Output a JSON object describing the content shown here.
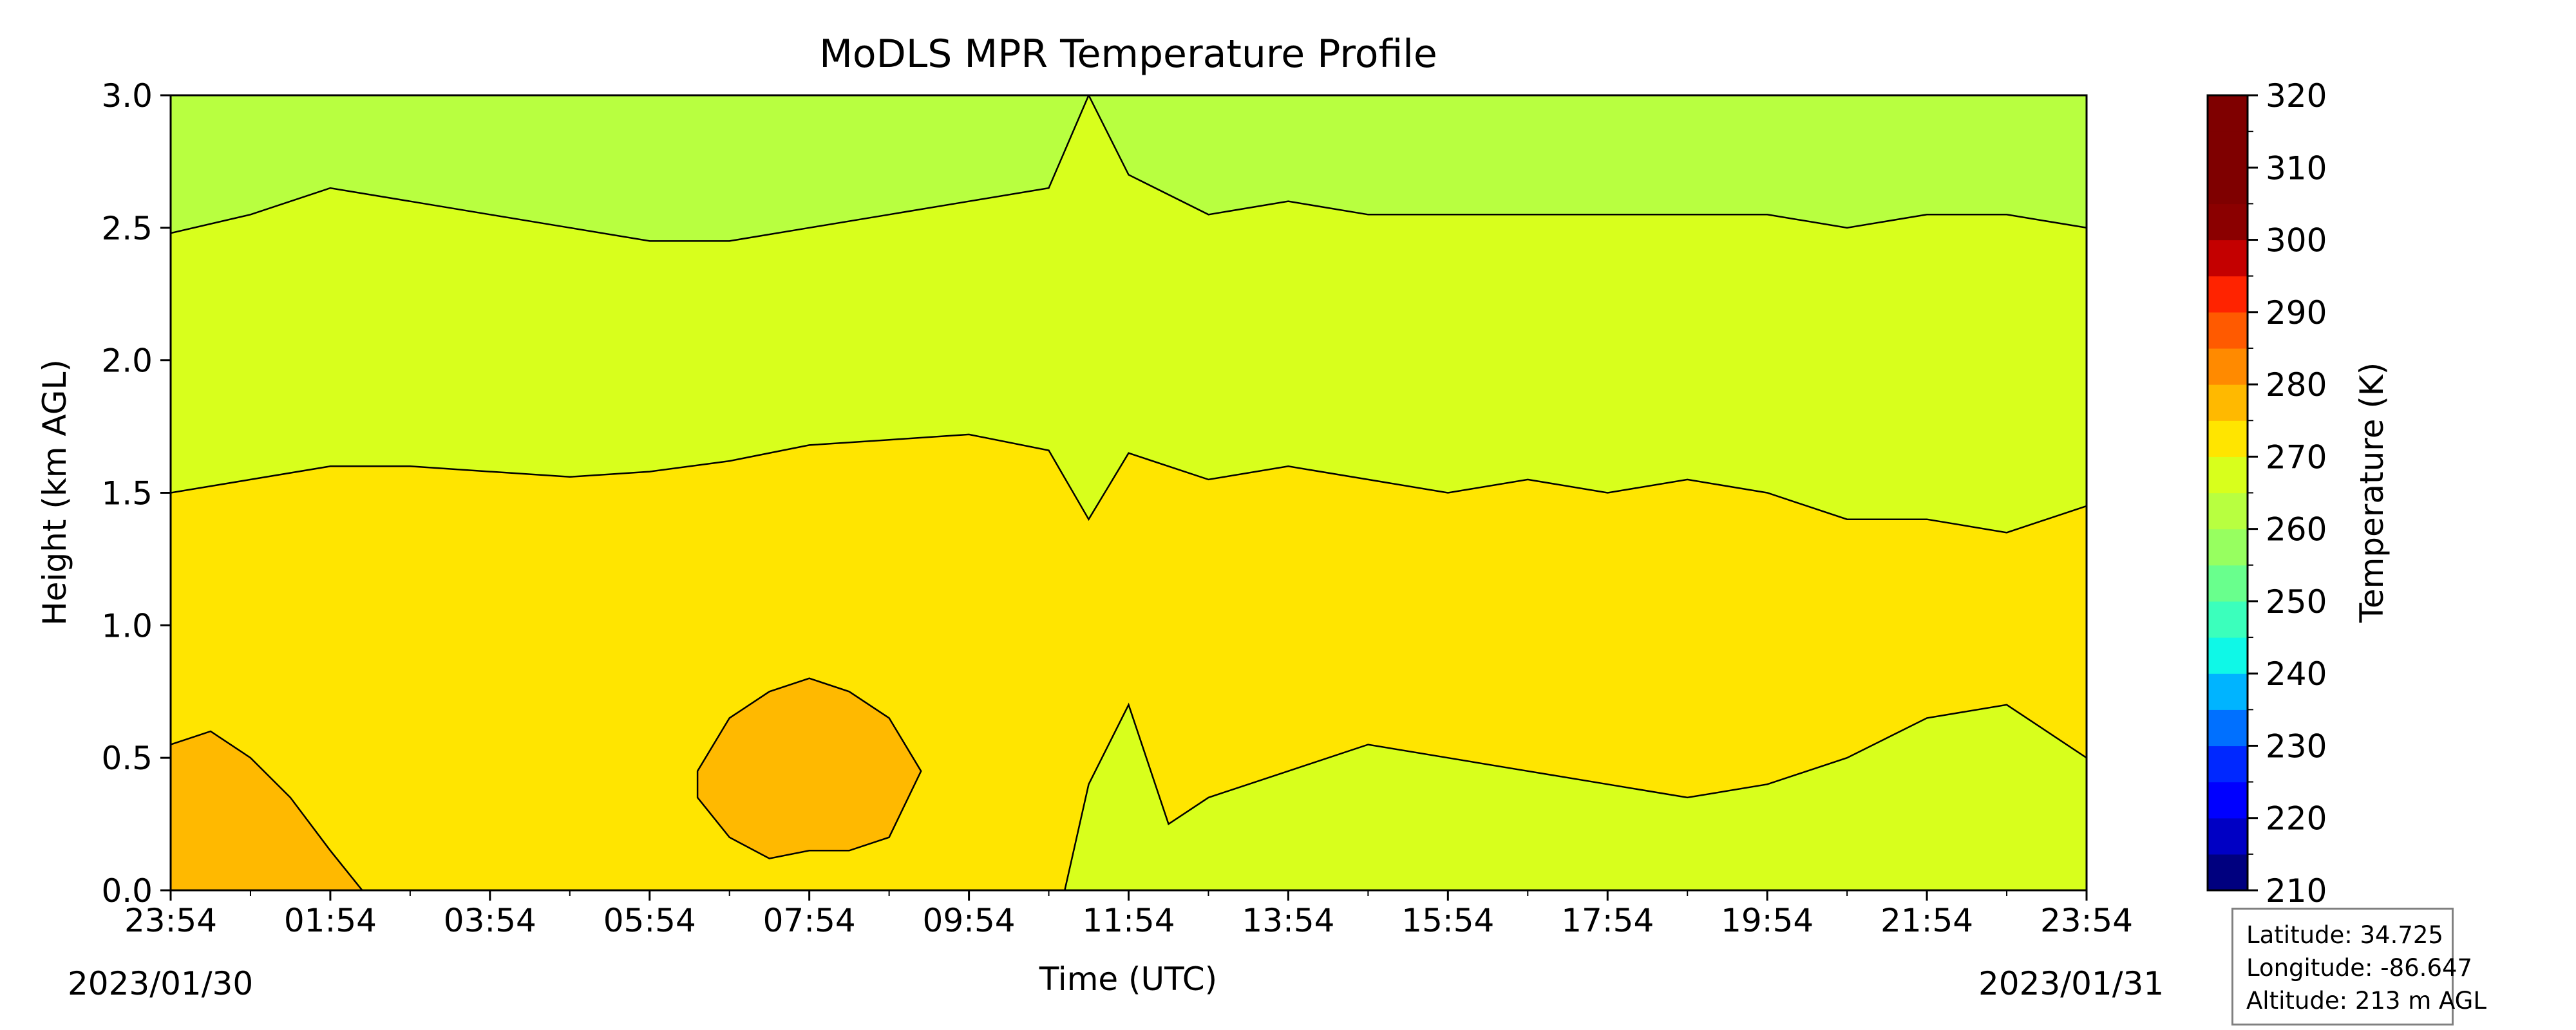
{
  "chart_data": {
    "type": "heatmap",
    "title": "MoDLS MPR Temperature Profile",
    "xlabel": "Time (UTC)",
    "ylabel": "Height (km AGL)",
    "xticks": [
      "23:54",
      "01:54",
      "03:54",
      "05:54",
      "07:54",
      "09:54",
      "11:54",
      "13:54",
      "15:54",
      "17:54",
      "19:54",
      "21:54",
      "23:54"
    ],
    "start_date": "2023/01/30",
    "end_date": "2023/01/31",
    "yticks": [
      "0.0",
      "0.5",
      "1.0",
      "1.5",
      "2.0",
      "2.5",
      "3.0"
    ],
    "ylim": [
      0,
      3
    ],
    "colorbar": {
      "label": "Temperature (K)",
      "range": [
        210,
        320
      ],
      "step": 5,
      "tick_labels": [
        "210",
        "220",
        "230",
        "240",
        "250",
        "260",
        "270",
        "280",
        "290",
        "300",
        "310",
        "320"
      ],
      "colors": [
        "#00007f",
        "#0000c4",
        "#0000ff",
        "#0028ff",
        "#0070ff",
        "#00b4ff",
        "#0ff8e7",
        "#3bffbc",
        "#69ff8d",
        "#97ff60",
        "#b8ff40",
        "#d8ff1c",
        "#ffe500",
        "#ffb900",
        "#ff8a00",
        "#ff5a00",
        "#ff2300",
        "#c40000",
        "#8b0000",
        "#7f0000",
        "#7f0000",
        "#7f0000"
      ]
    },
    "levels": [
      {
        "range": [
          285,
          290
        ],
        "color": "#ffb900"
      },
      {
        "range": [
          280,
          285
        ],
        "color": "#ffe500"
      },
      {
        "range": [
          275,
          280
        ],
        "color": "#d8ff1c"
      },
      {
        "range": [
          270,
          275
        ],
        "color": "#b8ff40"
      }
    ],
    "contours": [
      {
        "name": "280 K",
        "x_hours": [
          0,
          1,
          2,
          3,
          4,
          5,
          6,
          7,
          8,
          9,
          10,
          11,
          11.5,
          12,
          13,
          14,
          15,
          16,
          17,
          18,
          19,
          20,
          21,
          22,
          23,
          24
        ],
        "height_km": [
          1.5,
          1.55,
          1.6,
          1.6,
          1.58,
          1.56,
          1.58,
          1.62,
          1.68,
          1.7,
          1.72,
          1.66,
          1.4,
          1.65,
          1.55,
          1.6,
          1.55,
          1.5,
          1.55,
          1.5,
          1.55,
          1.5,
          1.4,
          1.4,
          1.35,
          1.45
        ]
      },
      {
        "name": "275 K",
        "x_hours": [
          0,
          1,
          2,
          3,
          4,
          5,
          6,
          7,
          8,
          9,
          10,
          11,
          11.5,
          12,
          13,
          14,
          15,
          16,
          17,
          18,
          19,
          20,
          21,
          22,
          23,
          24
        ],
        "height_km": [
          2.48,
          2.55,
          2.65,
          2.6,
          2.55,
          2.5,
          2.45,
          2.45,
          2.5,
          2.55,
          2.6,
          2.65,
          3.0,
          2.7,
          2.55,
          2.6,
          2.55,
          2.55,
          2.55,
          2.55,
          2.55,
          2.55,
          2.5,
          2.55,
          2.55,
          2.5
        ]
      },
      {
        "name": "285 K low",
        "x_hours": [
          0,
          0.5,
          1,
          1.5,
          2,
          2.4
        ],
        "height_km": [
          0.55,
          0.6,
          0.5,
          0.35,
          0.15,
          0.0
        ]
      },
      {
        "name": "285 K blob",
        "x_hours": [
          6.6,
          7,
          7.5,
          8,
          8.5,
          9,
          9.4,
          9.0,
          8.5,
          8,
          7.5,
          7,
          6.6
        ],
        "height_km": [
          0.45,
          0.65,
          0.75,
          0.8,
          0.75,
          0.65,
          0.45,
          0.2,
          0.15,
          0.15,
          0.12,
          0.2,
          0.35
        ]
      },
      {
        "name": "280 K low",
        "x_hours": [
          11.2,
          11.5,
          12,
          12.5,
          13,
          14,
          15,
          16,
          17,
          18,
          19,
          20,
          21,
          22,
          23,
          24
        ],
        "height_km": [
          0.0,
          0.4,
          0.7,
          0.25,
          0.35,
          0.45,
          0.55,
          0.5,
          0.45,
          0.4,
          0.35,
          0.4,
          0.5,
          0.65,
          0.7,
          0.5
        ]
      }
    ],
    "grid": false
  },
  "info": {
    "latitude": "Latitude: 34.725",
    "longitude": "Longitude: -86.647",
    "altitude": "Altitude: 213 m AGL"
  }
}
